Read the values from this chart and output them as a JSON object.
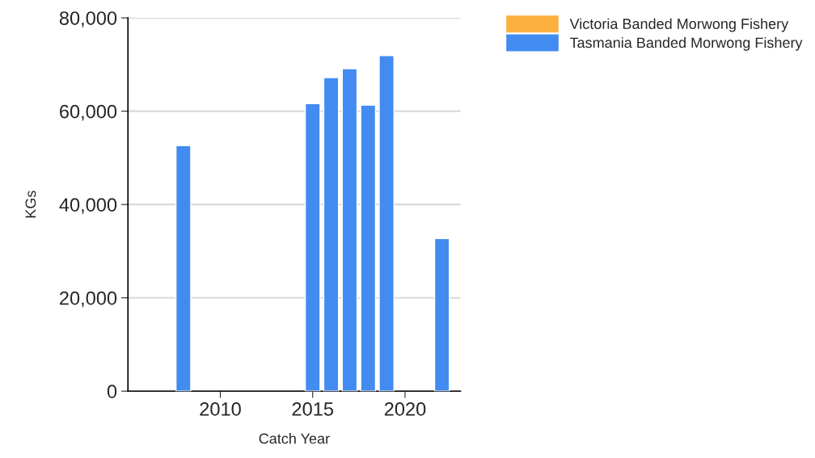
{
  "chart_data": {
    "type": "bar",
    "xlabel": "Catch Year",
    "ylabel": "KGs",
    "x": [
      2008,
      2015,
      2016,
      2017,
      2018,
      2019,
      2022
    ],
    "series": [
      {
        "name": "Victoria Banded Morwong Fishery",
        "color": "#fbb040",
        "values": [
          null,
          null,
          null,
          null,
          null,
          null,
          null
        ]
      },
      {
        "name": "Tasmania Banded Morwong Fishery",
        "color": "#428bf0",
        "values": [
          52600,
          61600,
          67200,
          69100,
          61300,
          71900,
          32700
        ]
      }
    ],
    "xlim": [
      2005,
      2023
    ],
    "xticks": [
      2010,
      2015,
      2020
    ],
    "ylim": [
      0,
      80000
    ],
    "yticks": [
      {
        "value": 0,
        "label": "0"
      },
      {
        "value": 20000,
        "label": "20,000"
      },
      {
        "value": 40000,
        "label": "40,000"
      },
      {
        "value": 60000,
        "label": "60,000"
      },
      {
        "value": 80000,
        "label": "80,000"
      }
    ],
    "grid": "y",
    "legend": "top right"
  }
}
